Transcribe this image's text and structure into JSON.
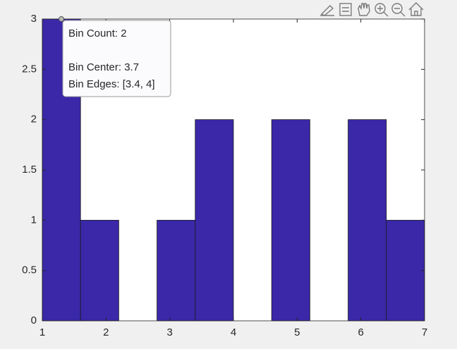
{
  "chart_data": {
    "type": "histogram",
    "bins": [
      1,
      1.6,
      2.2,
      2.8,
      3.4,
      4,
      4.6,
      5.2,
      5.8,
      6.4,
      7
    ],
    "values": [
      3,
      1,
      0,
      1,
      2,
      0,
      2,
      0,
      2,
      1
    ],
    "color": "#3a28a8",
    "xlim": [
      1,
      7
    ],
    "xticks": [
      1,
      2,
      3,
      4,
      5,
      6,
      7
    ],
    "ylim": [
      0,
      3
    ],
    "yticks": [
      0,
      0.5,
      1,
      1.5,
      2,
      2.5,
      3
    ],
    "datatip": [
      "Bin Count: 2",
      "Bin Center: 3.7",
      "Bin Edges: [3.4, 4]"
    ]
  }
}
